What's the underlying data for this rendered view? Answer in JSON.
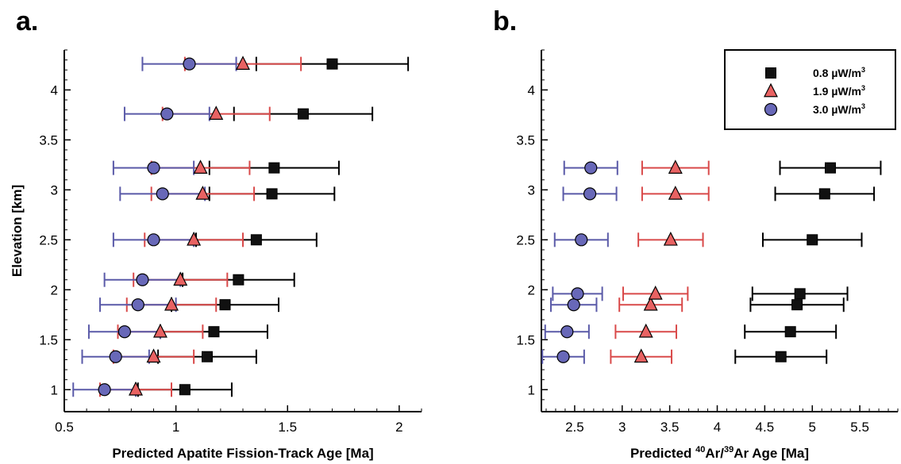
{
  "colors": {
    "series_fill": [
      "#111111",
      "#e86262",
      "#6868b8"
    ],
    "series_line": [
      "#000000",
      "#d94a4a",
      "#5a5aa8"
    ]
  },
  "chart_data": [
    {
      "type": "scatter",
      "panel_label": "a.",
      "xlabel": "Predicted Apatite Fission-Track Age [Ma]",
      "ylabel": "Elevation [km]",
      "xlim": [
        0.5,
        2.1
      ],
      "ylim": [
        0.78,
        4.4
      ],
      "xticks": [
        0.5,
        1,
        1.5,
        2
      ],
      "xtick_labels": [
        "0.5",
        "1",
        "1.5",
        "2"
      ],
      "yticks": [
        1,
        1.5,
        2,
        2.5,
        3,
        3.5,
        4
      ],
      "ytick_labels": [
        "1",
        "1.5",
        "2",
        "2.5",
        "3",
        "3.5",
        "4"
      ],
      "grid": false,
      "legend": null,
      "series": [
        {
          "name": "0.8 µW/m³",
          "marker": "square",
          "y": [
            1.0,
            1.33,
            1.58,
            1.85,
            2.1,
            2.5,
            2.96,
            3.22,
            3.76,
            4.26
          ],
          "x": [
            1.04,
            1.14,
            1.17,
            1.22,
            1.28,
            1.36,
            1.43,
            1.44,
            1.57,
            1.7
          ],
          "xerr": [
            0.21,
            0.22,
            0.24,
            0.24,
            0.25,
            0.27,
            0.28,
            0.29,
            0.31,
            0.34
          ]
        },
        {
          "name": "1.9 µW/m³",
          "marker": "triangle",
          "y": [
            1.0,
            1.33,
            1.58,
            1.85,
            2.1,
            2.5,
            2.96,
            3.22,
            3.76,
            4.26
          ],
          "x": [
            0.82,
            0.9,
            0.93,
            0.98,
            1.02,
            1.08,
            1.12,
            1.11,
            1.18,
            1.3
          ],
          "xerr": [
            0.16,
            0.18,
            0.19,
            0.2,
            0.21,
            0.22,
            0.23,
            0.22,
            0.24,
            0.26
          ]
        },
        {
          "name": "3.0 µW/m³",
          "marker": "circle",
          "y": [
            1.0,
            1.33,
            1.58,
            1.85,
            2.1,
            2.5,
            2.96,
            3.22,
            3.76,
            4.26
          ],
          "x": [
            0.68,
            0.73,
            0.77,
            0.83,
            0.85,
            0.9,
            0.94,
            0.9,
            0.96,
            1.06
          ],
          "xerr": [
            0.14,
            0.15,
            0.16,
            0.17,
            0.17,
            0.18,
            0.19,
            0.18,
            0.19,
            0.21
          ]
        }
      ]
    },
    {
      "type": "scatter",
      "panel_label": "b.",
      "xlabel_parts": [
        "Predicted ",
        "40",
        "Ar/",
        "39",
        "Ar Age [Ma]"
      ],
      "ylabel": "",
      "xlim": [
        2.15,
        5.9
      ],
      "ylim": [
        0.78,
        4.4
      ],
      "xticks": [
        2.5,
        3,
        3.5,
        4,
        4.5,
        5,
        5.5
      ],
      "xtick_labels": [
        "2.5",
        "3",
        "3.5",
        "4",
        "4.5",
        "5",
        "5.5"
      ],
      "yticks": [
        1,
        1.5,
        2,
        2.5,
        3,
        3.5,
        4
      ],
      "ytick_labels": [
        "1",
        "1.5",
        "2",
        "2.5",
        "3",
        "3.5",
        "4"
      ],
      "grid": false,
      "legend": "top-right",
      "series": [
        {
          "name": "0.8 µW/m³",
          "name_parts": [
            "0.8 µW/m",
            "3"
          ],
          "marker": "square",
          "y": [
            1.33,
            1.58,
            1.85,
            1.96,
            2.5,
            2.96,
            3.22
          ],
          "x": [
            4.67,
            4.77,
            4.84,
            4.87,
            5.0,
            5.13,
            5.19
          ],
          "xerr": [
            0.48,
            0.48,
            0.49,
            0.5,
            0.52,
            0.52,
            0.53
          ]
        },
        {
          "name": "1.9 µW/m³",
          "name_parts": [
            "1.9 µW/m",
            "3"
          ],
          "marker": "triangle",
          "y": [
            1.33,
            1.58,
            1.85,
            1.96,
            2.5,
            2.96,
            3.22
          ],
          "x": [
            3.2,
            3.25,
            3.3,
            3.35,
            3.51,
            3.56,
            3.56
          ],
          "xerr": [
            0.32,
            0.32,
            0.33,
            0.34,
            0.34,
            0.35,
            0.35
          ]
        },
        {
          "name": "3.0 µW/m³",
          "name_parts": [
            "3.0 µW/m",
            "3"
          ],
          "marker": "circle",
          "y": [
            1.33,
            1.58,
            1.85,
            1.96,
            2.5,
            2.96,
            3.22
          ],
          "x": [
            2.38,
            2.42,
            2.49,
            2.53,
            2.57,
            2.66,
            2.67
          ],
          "xerr": [
            0.22,
            0.23,
            0.24,
            0.26,
            0.28,
            0.28,
            0.28
          ]
        }
      ]
    }
  ]
}
